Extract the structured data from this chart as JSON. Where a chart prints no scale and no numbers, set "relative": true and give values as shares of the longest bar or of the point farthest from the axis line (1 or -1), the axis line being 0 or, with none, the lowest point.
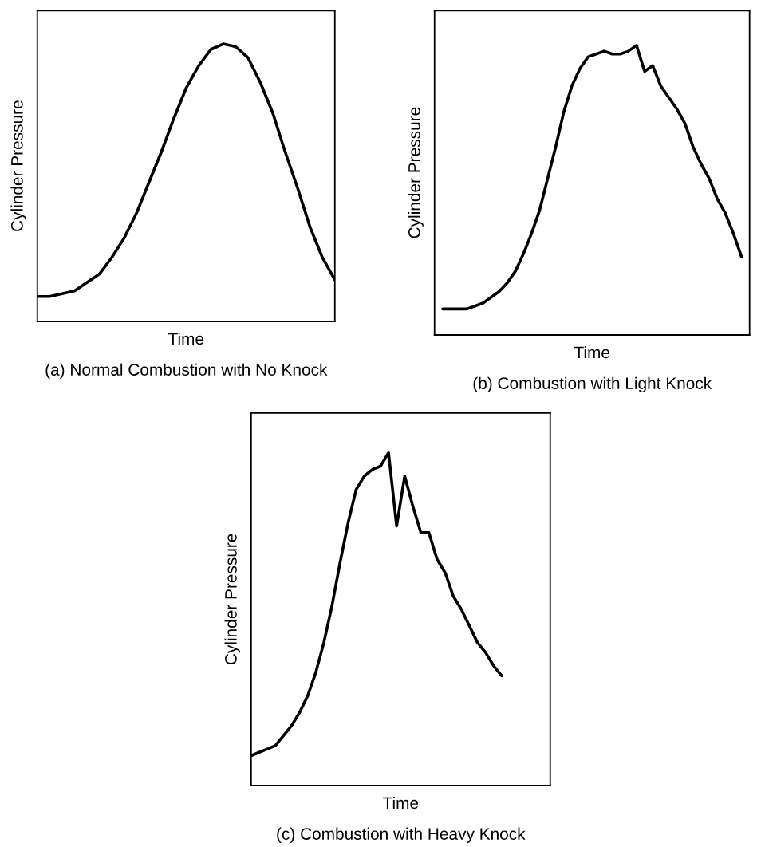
{
  "chart_data": [
    {
      "type": "line",
      "relative": true,
      "xlabel": "Time",
      "ylabel": "Cylinder Pressure",
      "title": "(a) Normal Combustion with No Knock",
      "grid": false,
      "legend": false,
      "tick_labels": false,
      "marker": "none",
      "line_style": "solid",
      "categories": [
        null,
        null,
        null,
        null,
        null,
        null,
        null,
        null,
        null,
        null,
        null,
        null,
        null,
        null,
        null,
        null,
        null,
        null,
        null,
        null,
        null,
        null,
        null,
        null,
        null
      ],
      "series": [
        {
          "color": "#000000",
          "values": [
            0.09,
            0.09,
            0.1,
            0.11,
            0.14,
            0.17,
            0.23,
            0.3,
            0.39,
            0.5,
            0.61,
            0.73,
            0.84,
            0.92,
            0.98,
            1,
            0.99,
            0.95,
            0.86,
            0.75,
            0.61,
            0.48,
            0.34,
            0.23,
            0.15
          ]
        }
      ]
    },
    {
      "type": "line",
      "relative": true,
      "xlabel": "Time",
      "ylabel": "Cylinder Pressure",
      "title": "(b) Combustion with Light Knock",
      "grid": false,
      "legend": false,
      "tick_labels": false,
      "marker": "none",
      "line_style": "solid",
      "categories": [
        null,
        null,
        null,
        null,
        null,
        null,
        null,
        null,
        null,
        null,
        null,
        null,
        null,
        null,
        null,
        null,
        null,
        null,
        null,
        null,
        null,
        null,
        null,
        null,
        null,
        null,
        null,
        null,
        null,
        null,
        null,
        null,
        null,
        null,
        null,
        null,
        null,
        null,
        null,
        null
      ],
      "series": [
        {
          "color": "#000000",
          "values": [
            null,
            0.09,
            0.09,
            0.09,
            0.09,
            0.1,
            0.11,
            0.13,
            0.15,
            0.18,
            0.22,
            0.28,
            0.35,
            0.43,
            0.54,
            0.65,
            0.77,
            0.86,
            0.92,
            0.96,
            0.97,
            0.98,
            0.97,
            0.97,
            0.98,
            1,
            0.91,
            0.93,
            0.86,
            0.82,
            0.78,
            0.73,
            0.65,
            0.59,
            0.54,
            0.47,
            0.42,
            0.35,
            0.27,
            null
          ]
        }
      ]
    },
    {
      "type": "line",
      "relative": true,
      "xlabel": "Time",
      "ylabel": "Cylinder Pressure",
      "title": "(c) Combustion with Heavy Knock",
      "grid": false,
      "legend": false,
      "tick_labels": false,
      "marker": "none",
      "line_style": "solid",
      "categories": [
        null,
        null,
        null,
        null,
        null,
        null,
        null,
        null,
        null,
        null,
        null,
        null,
        null,
        null,
        null,
        null,
        null,
        null,
        null,
        null,
        null,
        null,
        null,
        null,
        null,
        null,
        null,
        null,
        null,
        null,
        null,
        null,
        null,
        null,
        null,
        null,
        null,
        null
      ],
      "series": [
        {
          "color": "#000000",
          "values": [
            0.09,
            0.1,
            0.11,
            0.12,
            0.15,
            0.18,
            0.22,
            0.27,
            0.34,
            0.43,
            0.54,
            0.67,
            0.79,
            0.89,
            0.93,
            0.95,
            0.96,
            1,
            0.78,
            0.93,
            0.84,
            0.76,
            0.76,
            0.68,
            0.64,
            0.57,
            0.53,
            0.48,
            0.43,
            0.4,
            0.36,
            0.33,
            null,
            null,
            null,
            null,
            null,
            null
          ]
        }
      ]
    }
  ]
}
